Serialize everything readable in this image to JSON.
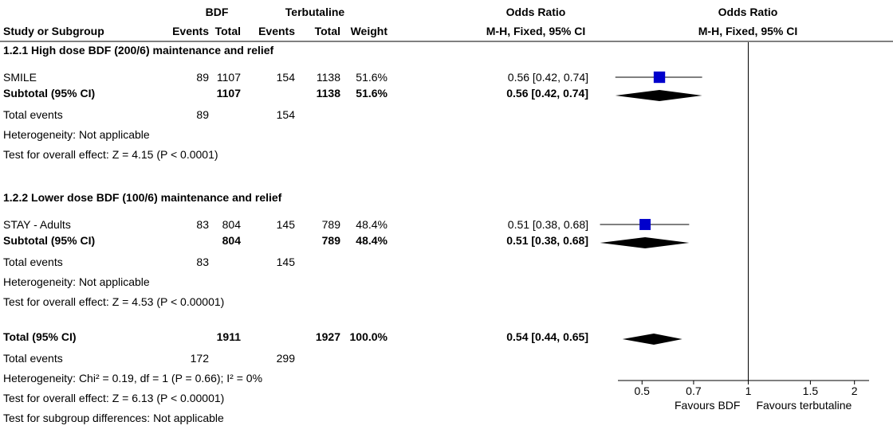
{
  "chart_data": {
    "type": "forest",
    "header": {
      "group1": "BDF",
      "group2": "Terbutaline",
      "effect": "Odds Ratio",
      "plot_effect": "Odds Ratio",
      "columns": [
        "Study or Subgroup",
        "Events",
        "Total",
        "Events",
        "Total",
        "Weight",
        "M-H, Fixed, 95% CI"
      ],
      "plot_method": "M-H, Fixed, 95% CI"
    },
    "subgroups": [
      {
        "title": "1.2.1 High dose BDF (200/6) maintenance and relief",
        "studies": [
          {
            "name": "SMILE",
            "events1": 89,
            "total1": 1107,
            "events2": 154,
            "total2": 1138,
            "weight": 51.6,
            "weight_label": "51.6%",
            "or": 0.56,
            "lo": 0.42,
            "hi": 0.74,
            "ci_label": "0.56 [0.42, 0.74]"
          }
        ],
        "subtotal": {
          "name": "Subtotal (95% CI)",
          "total1": 1107,
          "total2": 1138,
          "weight": 51.6,
          "weight_label": "51.6%",
          "or": 0.56,
          "lo": 0.42,
          "hi": 0.74,
          "ci_label": "0.56 [0.42, 0.74]"
        },
        "events": {
          "name": "Total events",
          "events1": 89,
          "events2": 154
        },
        "heterogeneity": "Heterogeneity: Not applicable",
        "overall": "Test for overall effect: Z = 4.15 (P < 0.0001)"
      },
      {
        "title": "1.2.2 Lower dose BDF (100/6) maintenance and relief",
        "studies": [
          {
            "name": "STAY - Adults",
            "events1": 83,
            "total1": 804,
            "events2": 145,
            "total2": 789,
            "weight": 48.4,
            "weight_label": "48.4%",
            "or": 0.51,
            "lo": 0.38,
            "hi": 0.68,
            "ci_label": "0.51 [0.38, 0.68]"
          }
        ],
        "subtotal": {
          "name": "Subtotal (95% CI)",
          "total1": 804,
          "total2": 789,
          "weight": 48.4,
          "weight_label": "48.4%",
          "or": 0.51,
          "lo": 0.38,
          "hi": 0.68,
          "ci_label": "0.51 [0.38, 0.68]"
        },
        "events": {
          "name": "Total events",
          "events1": 83,
          "events2": 145
        },
        "heterogeneity": "Heterogeneity: Not applicable",
        "overall": "Test for overall effect: Z = 4.53 (P < 0.00001)"
      }
    ],
    "total": {
      "name": "Total (95% CI)",
      "total1": 1911,
      "total2": 1927,
      "weight": 100.0,
      "weight_label": "100.0%",
      "or": 0.54,
      "lo": 0.44,
      "hi": 0.65,
      "ci_label": "0.54 [0.44, 0.65]"
    },
    "total_events": {
      "name": "Total events",
      "events1": 172,
      "events2": 299
    },
    "heterogeneity": "Heterogeneity: Chi² = 0.19, df = 1 (P = 0.66); I² = 0%",
    "overall": "Test for overall effect: Z = 6.13 (P < 0.00001)",
    "subgroup_differences": "Test for subgroup differences: Not applicable",
    "log_scale": true,
    "xlim": [
      0.45,
      2.2
    ],
    "xticks": [
      0.5,
      0.7,
      1,
      1.5,
      2
    ],
    "null_value": 1,
    "favours_left": "Favours BDF",
    "favours_right": "Favours terbutaline",
    "square_color": "#0000cc",
    "diamond_color": "#000000"
  }
}
